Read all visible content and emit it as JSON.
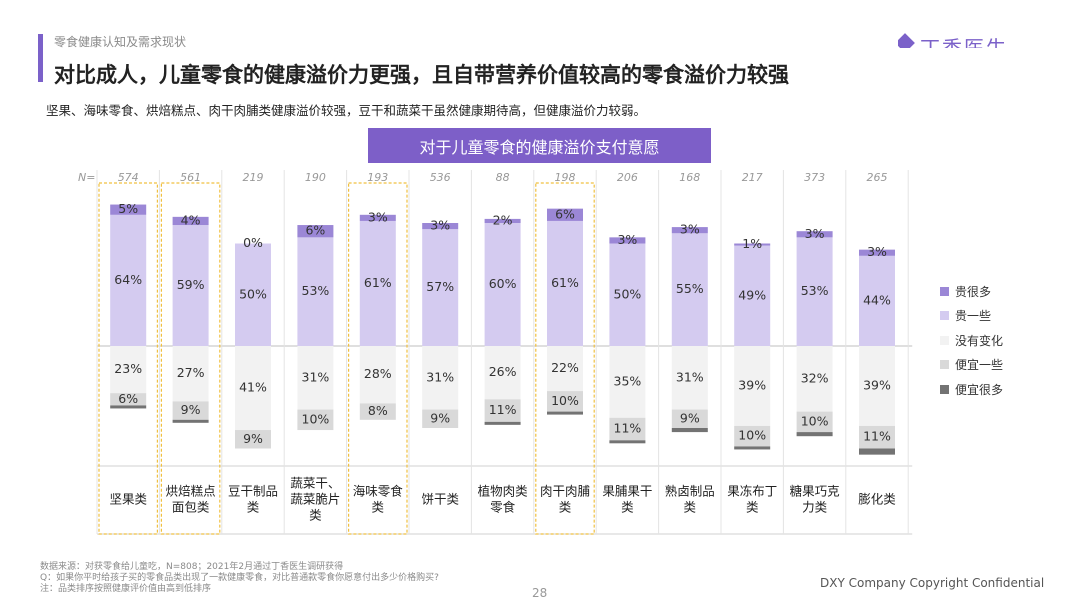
{
  "header": {
    "section_label": "零食健康认知及需求现状",
    "title": "对比成人，儿童零食的健康溢价力更强，且自带营养价值较高的零食溢价力较强",
    "subtitle": "坚果、海味零食、烘焙糕点、肉干肉脯类健康溢价较强，豆干和蔬菜干虽然健康期待高，但健康溢价力较弱。",
    "logo_text": "丁香医生"
  },
  "chart_data": {
    "type": "bar",
    "stacked": true,
    "title": "对于儿童零食的健康溢价支付意愿",
    "n_label": "N=",
    "categories": [
      "坚果类",
      "烘焙糕点面包类",
      "豆干制品类",
      "蔬菜干、蔬菜脆片类",
      "海味零食类",
      "饼干类",
      "植物肉类零食",
      "肉干肉脯类",
      "果脯果干类",
      "熟卤制品类",
      "果冻布丁类",
      "糖果巧克力类",
      "膨化类"
    ],
    "category_lines": [
      [
        "坚果类"
      ],
      [
        "烘焙糕点",
        "面包类"
      ],
      [
        "豆干制品",
        "类"
      ],
      [
        "蔬菜干、",
        "蔬菜脆片",
        "类"
      ],
      [
        "海味零食",
        "类"
      ],
      [
        "饼干类"
      ],
      [
        "植物肉类",
        "零食"
      ],
      [
        "肉干肉脯",
        "类"
      ],
      [
        "果脯果干",
        "类"
      ],
      [
        "熟卤制品",
        "类"
      ],
      [
        "果冻布丁",
        "类"
      ],
      [
        "糖果巧克",
        "力类"
      ],
      [
        "膨化类"
      ]
    ],
    "n_values": [
      574,
      561,
      219,
      190,
      193,
      536,
      88,
      198,
      206,
      168,
      217,
      373,
      265
    ],
    "series": [
      {
        "name": "贵很多",
        "color": "#9b87d6",
        "values": [
          5,
          4,
          0,
          6,
          3,
          3,
          2,
          6,
          3,
          3,
          1,
          3,
          3
        ]
      },
      {
        "name": "贵一些",
        "color": "#d4cbf0",
        "values": [
          64,
          59,
          50,
          53,
          61,
          57,
          60,
          61,
          50,
          55,
          49,
          53,
          44
        ]
      },
      {
        "name": "没有变化",
        "color": "#f2f2f2",
        "values": [
          23,
          27,
          41,
          31,
          28,
          31,
          26,
          22,
          35,
          31,
          39,
          32,
          39
        ]
      },
      {
        "name": "便宜一些",
        "color": "#d9d9d9",
        "values": [
          6,
          9,
          9,
          10,
          8,
          9,
          11,
          10,
          11,
          9,
          10,
          10,
          11
        ]
      },
      {
        "name": "便宜很多",
        "color": "#737373",
        "values": [
          1,
          1,
          0,
          0,
          0,
          0,
          1,
          1,
          1,
          2,
          1,
          2,
          3
        ]
      }
    ],
    "highlighted_categories": [
      "坚果类",
      "烘焙糕点面包类",
      "海味零食类",
      "肉干肉脯类"
    ],
    "legend_position": "right"
  },
  "footer": {
    "notes": [
      "数据来源：对获零食给儿童吃，N=808；2021年2月通过丁香医生调研获得",
      "Q：如果你平时给孩子买的零食品类出现了一款健康零食，对比普通款零食你愿意付出多少价格购买?",
      "注：品类排序按照健康评价值由高到低排序"
    ],
    "page_number": "28",
    "copyright": "DXY Company Copyright Confidential"
  }
}
